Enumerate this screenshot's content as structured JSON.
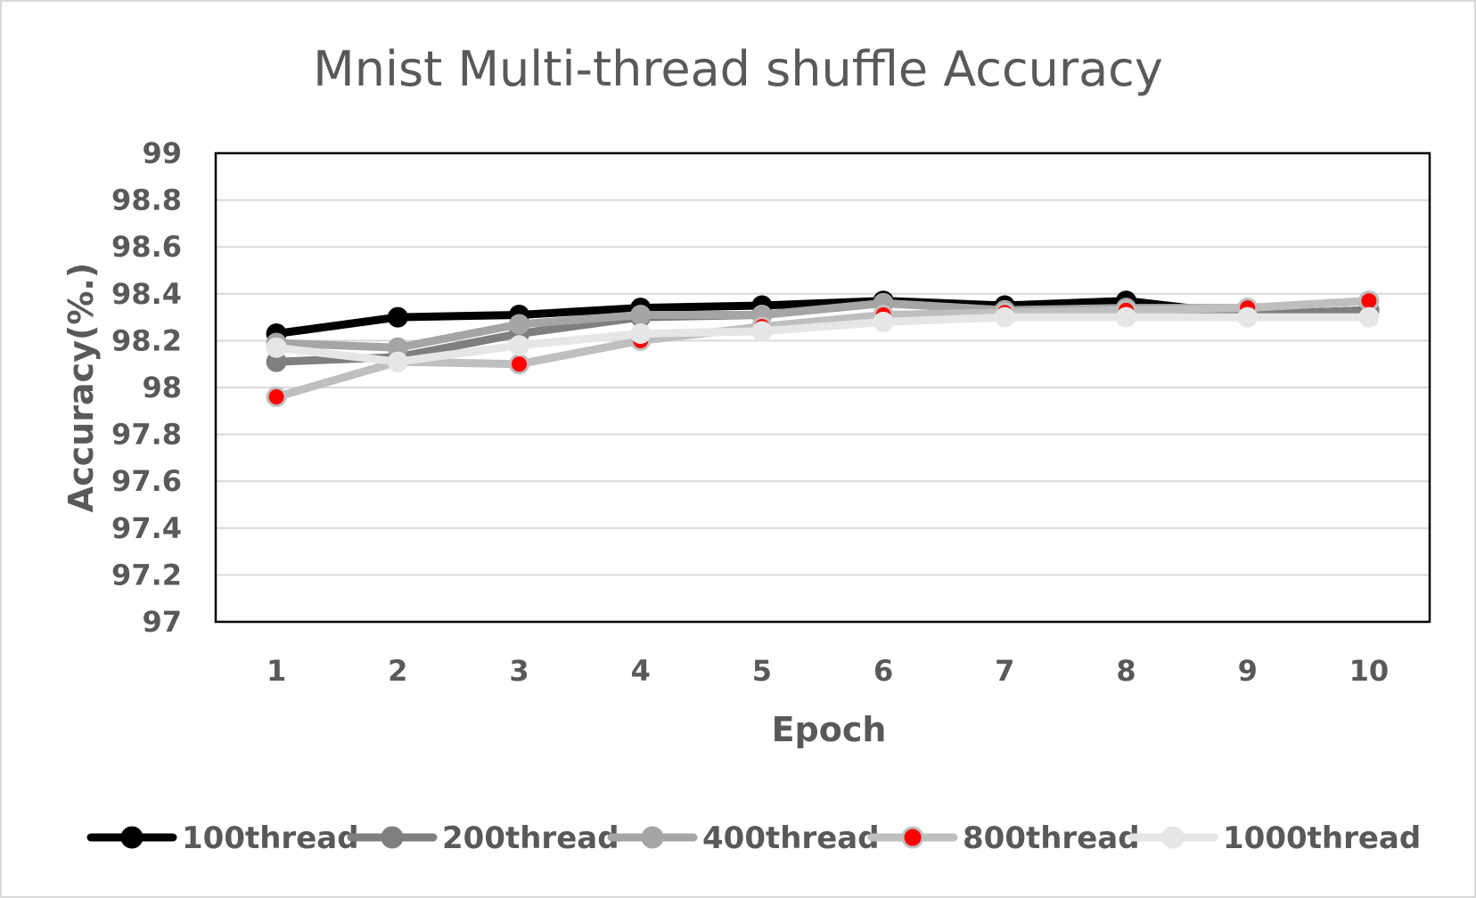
{
  "chart_data": {
    "type": "line",
    "title": "Mnist Multi-thread shuffle Accuracy",
    "xlabel": "Epoch",
    "ylabel": "Accuracy(%.)",
    "categories": [
      "1",
      "2",
      "3",
      "4",
      "5",
      "6",
      "7",
      "8",
      "9",
      "10"
    ],
    "y_ticks": [
      "97",
      "97.2",
      "97.4",
      "97.6",
      "97.8",
      "98",
      "98.2",
      "98.4",
      "98.6",
      "98.8",
      "99"
    ],
    "ylim": [
      97,
      99
    ],
    "grid": "horizontal",
    "legend_position": "bottom",
    "series": [
      {
        "name": "100thread",
        "line_color": "#000000",
        "marker_color": "#000000",
        "values": [
          98.23,
          98.3,
          98.31,
          98.34,
          98.35,
          98.37,
          98.35,
          98.37,
          98.31,
          98.33
        ]
      },
      {
        "name": "200thread",
        "line_color": "#7f7f7f",
        "marker_color": "#7f7f7f",
        "values": [
          98.11,
          98.13,
          98.23,
          98.3,
          98.31,
          98.36,
          98.33,
          98.33,
          98.31,
          98.33
        ]
      },
      {
        "name": "400thread",
        "line_color": "#a5a5a5",
        "marker_color": "#a5a5a5",
        "values": [
          98.19,
          98.17,
          98.27,
          98.31,
          98.31,
          98.36,
          98.33,
          98.34,
          98.34,
          98.37
        ]
      },
      {
        "name": "800thread",
        "line_color": "#bfbfbf",
        "marker_color": "#ff0000",
        "values": [
          97.96,
          98.11,
          98.1,
          98.2,
          98.26,
          98.31,
          98.32,
          98.33,
          98.34,
          98.37
        ]
      },
      {
        "name": "1000thread",
        "line_color": "#e6e6e6",
        "marker_color": "#e6e6e6",
        "values": [
          98.17,
          98.11,
          98.18,
          98.23,
          98.24,
          98.28,
          98.3,
          98.3,
          98.3,
          98.3
        ]
      }
    ]
  }
}
